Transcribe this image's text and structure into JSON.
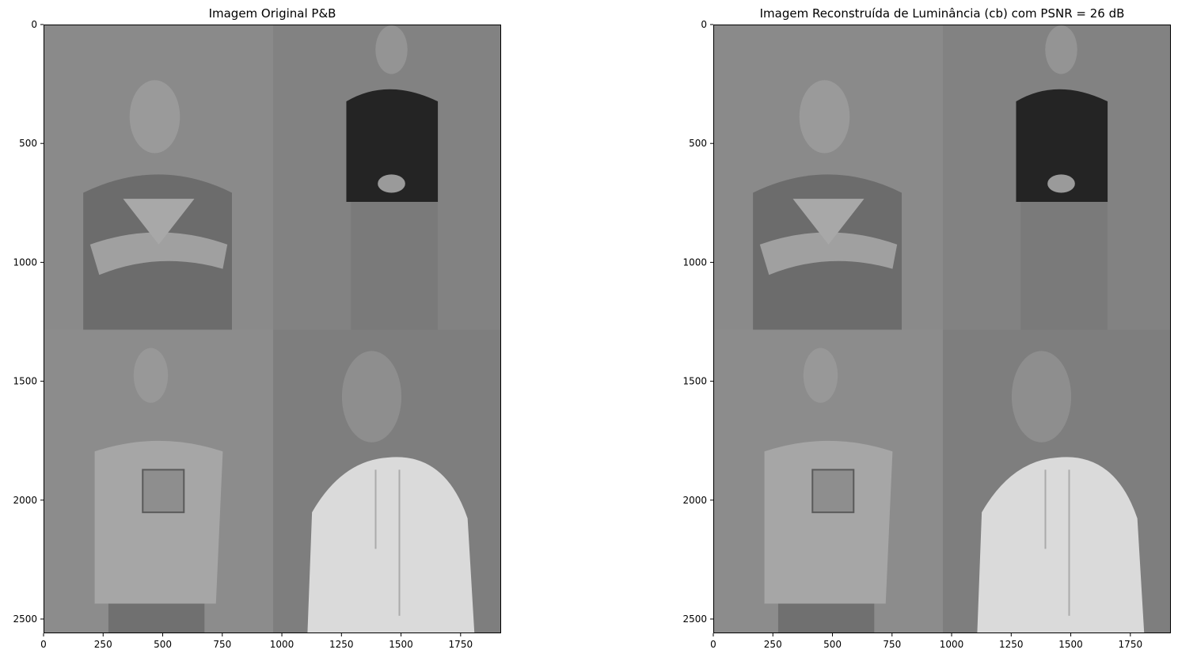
{
  "chart_data": [
    {
      "type": "image",
      "title": "Imagem Original P&B",
      "xlim": [
        0,
        1920
      ],
      "ylim": [
        2560,
        0
      ],
      "xticks": [
        0,
        250,
        500,
        750,
        1000,
        1250,
        1500,
        1750
      ],
      "yticks": [
        0,
        500,
        1000,
        1500,
        2000,
        2500
      ],
      "colormap": "gray",
      "quadrants": [
        {
          "name": "top-left",
          "x": [
            0,
            960
          ],
          "y": [
            0,
            1280
          ],
          "background": "#8a8a8a",
          "subject": "man in dark t-shirt, arms crossed"
        },
        {
          "name": "top-right",
          "x": [
            960,
            1920
          ],
          "y": [
            0,
            1280
          ],
          "background": "#828282",
          "subject": "man in black polo, hands clasped"
        },
        {
          "name": "bottom-left",
          "x": [
            0,
            960
          ],
          "y": [
            1280,
            2560
          ],
          "background": "#8c8c8c",
          "subject": "man in light t-shirt with logo"
        },
        {
          "name": "bottom-right",
          "x": [
            960,
            1920
          ],
          "y": [
            1280,
            2560
          ],
          "background": "#7e7e7e",
          "subject": "person in white hoodie"
        }
      ]
    },
    {
      "type": "image",
      "title": "Imagem Reconstruída de Luminância (cb) com PSNR = 26 dB",
      "xlim": [
        0,
        1920
      ],
      "ylim": [
        2560,
        0
      ],
      "xticks": [
        0,
        250,
        500,
        750,
        1000,
        1250,
        1500,
        1750
      ],
      "yticks": [
        0,
        500,
        1000,
        1500,
        2000,
        2500
      ],
      "colormap": "gray",
      "quadrants": [
        {
          "name": "top-left",
          "x": [
            0,
            960
          ],
          "y": [
            0,
            1280
          ],
          "background": "#8a8a8a",
          "subject": "man in dark t-shirt, arms crossed"
        },
        {
          "name": "top-right",
          "x": [
            960,
            1920
          ],
          "y": [
            0,
            1280
          ],
          "background": "#828282",
          "subject": "man in black polo, hands clasped"
        },
        {
          "name": "bottom-left",
          "x": [
            0,
            960
          ],
          "y": [
            1280,
            2560
          ],
          "background": "#8c8c8c",
          "subject": "man in light t-shirt with logo"
        },
        {
          "name": "bottom-right",
          "x": [
            960,
            1920
          ],
          "y": [
            1280,
            2560
          ],
          "background": "#7e7e7e",
          "subject": "person in white hoodie"
        }
      ]
    }
  ]
}
